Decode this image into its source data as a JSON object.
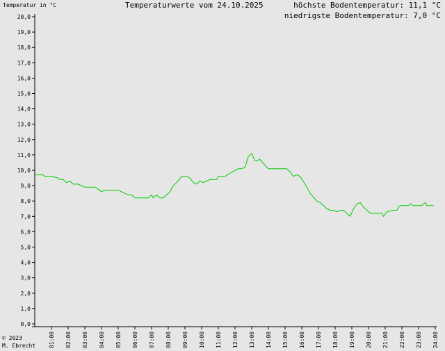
{
  "header": {
    "ylabel": "Temperatur in °C",
    "title": "Temperaturwerte vom 24.10.2025",
    "max_text": "höchste Bodentemperatur: 11,1 °C",
    "min_text": "niedrigste Bodentemperatur: 7,0 °C"
  },
  "footer": {
    "copyright": "© 2023",
    "author": "M. Ebrecht"
  },
  "chart_data": {
    "type": "line",
    "title": "Temperaturwerte vom 24.10.2025",
    "xlabel": "",
    "ylabel": "Temperatur in °C",
    "xlim": [
      0,
      24
    ],
    "ylim": [
      0,
      20
    ],
    "grid": false,
    "line_color": "#00cc00",
    "y_ticks": [
      "0,0",
      "1,0",
      "2,0",
      "3,0",
      "4,0",
      "5,0",
      "6,0",
      "7,0",
      "8,0",
      "9,0",
      "10,0",
      "11,0",
      "12,0",
      "13,0",
      "14,0",
      "15,0",
      "16,0",
      "17,0",
      "18,0",
      "19,0",
      "20,0"
    ],
    "x_ticks": [
      "01:00",
      "02:00",
      "03:00",
      "04:00",
      "05:00",
      "06:00",
      "07:00",
      "08:00",
      "09:00",
      "10:00",
      "11:00",
      "12:00",
      "13:00",
      "14:00",
      "15:00",
      "16:00",
      "17:00",
      "18:00",
      "19:00",
      "20:00",
      "21:00",
      "22:00",
      "23:00",
      "24:00"
    ],
    "series": [
      {
        "x": [
          0.0,
          0.5,
          0.6,
          1.0,
          1.4,
          1.5,
          1.7,
          1.9,
          2.1,
          2.3,
          2.6,
          3.0,
          3.6,
          3.9,
          4.0,
          4.2,
          5.0,
          5.2,
          5.6,
          5.8,
          6.0,
          6.6,
          6.8,
          7.0,
          7.1,
          7.3,
          7.5,
          7.7,
          7.9,
          8.1,
          8.3,
          8.5,
          8.8,
          9.1,
          9.3,
          9.5,
          9.7,
          9.9,
          10.1,
          10.5,
          10.9,
          11.0,
          11.2,
          11.4,
          12.0,
          12.2,
          12.4,
          12.6,
          12.8,
          13.0,
          13.2,
          13.5,
          13.9,
          14.0,
          14.5,
          14.8,
          15.1,
          15.3,
          15.5,
          15.7,
          15.9,
          16.2,
          16.5,
          16.9,
          17.1,
          17.3,
          17.5,
          17.7,
          17.9,
          18.1,
          18.3,
          18.5,
          18.7,
          18.9,
          19.1,
          19.3,
          19.5,
          19.7,
          19.9,
          20.1,
          20.5,
          20.8,
          20.9,
          21.1,
          21.5,
          21.7,
          21.8,
          21.9,
          22.2,
          22.4,
          22.5,
          22.7,
          22.9,
          23.2,
          23.4,
          23.5,
          23.9
        ],
        "y": [
          9.7,
          9.7,
          9.6,
          9.6,
          9.5,
          9.4,
          9.4,
          9.2,
          9.3,
          9.1,
          9.1,
          8.9,
          8.9,
          8.7,
          8.6,
          8.7,
          8.7,
          8.6,
          8.4,
          8.4,
          8.2,
          8.2,
          8.2,
          8.4,
          8.2,
          8.4,
          8.2,
          8.2,
          8.4,
          8.6,
          9.0,
          9.2,
          9.6,
          9.6,
          9.5,
          9.2,
          9.1,
          9.3,
          9.2,
          9.4,
          9.4,
          9.6,
          9.6,
          9.6,
          10.0,
          10.1,
          10.1,
          10.2,
          10.9,
          11.1,
          10.6,
          10.7,
          10.2,
          10.1,
          10.1,
          10.1,
          10.1,
          9.9,
          9.6,
          9.7,
          9.6,
          9.1,
          8.5,
          8.0,
          7.9,
          7.7,
          7.5,
          7.4,
          7.4,
          7.3,
          7.4,
          7.4,
          7.2,
          7.0,
          7.5,
          7.8,
          7.9,
          7.6,
          7.4,
          7.2,
          7.2,
          7.2,
          7.0,
          7.3,
          7.4,
          7.4,
          7.6,
          7.7,
          7.7,
          7.7,
          7.8,
          7.7,
          7.7,
          7.7,
          7.9,
          7.7,
          7.7
        ]
      }
    ]
  }
}
